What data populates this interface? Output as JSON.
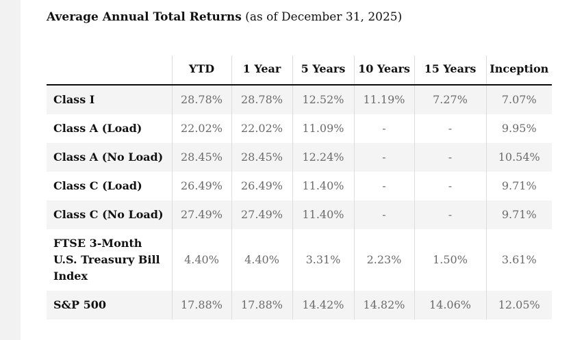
{
  "title": {
    "main": "Average Annual Total Returns",
    "suffix": " (as of December 31, 2025)"
  },
  "chart_data": {
    "type": "table",
    "title": "Average Annual Total Returns (as of December 31, 2025)",
    "columns": [
      "",
      "YTD",
      "1 Year",
      "5 Years",
      "10 Years",
      "15 Years",
      "Inception"
    ],
    "rows": [
      {
        "label": "Class I",
        "values": [
          "28.78%",
          "28.78%",
          "12.52%",
          "11.19%",
          "7.27%",
          "7.07%"
        ]
      },
      {
        "label": "Class A (Load)",
        "values": [
          "22.02%",
          "22.02%",
          "11.09%",
          "-",
          "-",
          "9.95%"
        ]
      },
      {
        "label": "Class A (No Load)",
        "values": [
          "28.45%",
          "28.45%",
          "12.24%",
          "-",
          "-",
          "10.54%"
        ]
      },
      {
        "label": "Class C (Load)",
        "values": [
          "26.49%",
          "26.49%",
          "11.40%",
          "-",
          "-",
          "9.71%"
        ]
      },
      {
        "label": "Class C (No Load)",
        "values": [
          "27.49%",
          "27.49%",
          "11.40%",
          "-",
          "-",
          "9.71%"
        ]
      },
      {
        "label": "FTSE 3-Month U.S. Treasury Bill Index",
        "values": [
          "4.40%",
          "4.40%",
          "3.31%",
          "2.23%",
          "1.50%",
          "3.61%"
        ]
      },
      {
        "label": "S&P 500",
        "values": [
          "17.88%",
          "17.88%",
          "14.42%",
          "14.82%",
          "14.06%",
          "12.05%"
        ]
      }
    ],
    "layout": {
      "row_shading": "alternating, first data row shaded",
      "header_rule": "2px solid black below header",
      "column_dividers": "1px light gray between all columns",
      "value_alignment": "center",
      "label_alignment": "left"
    }
  }
}
